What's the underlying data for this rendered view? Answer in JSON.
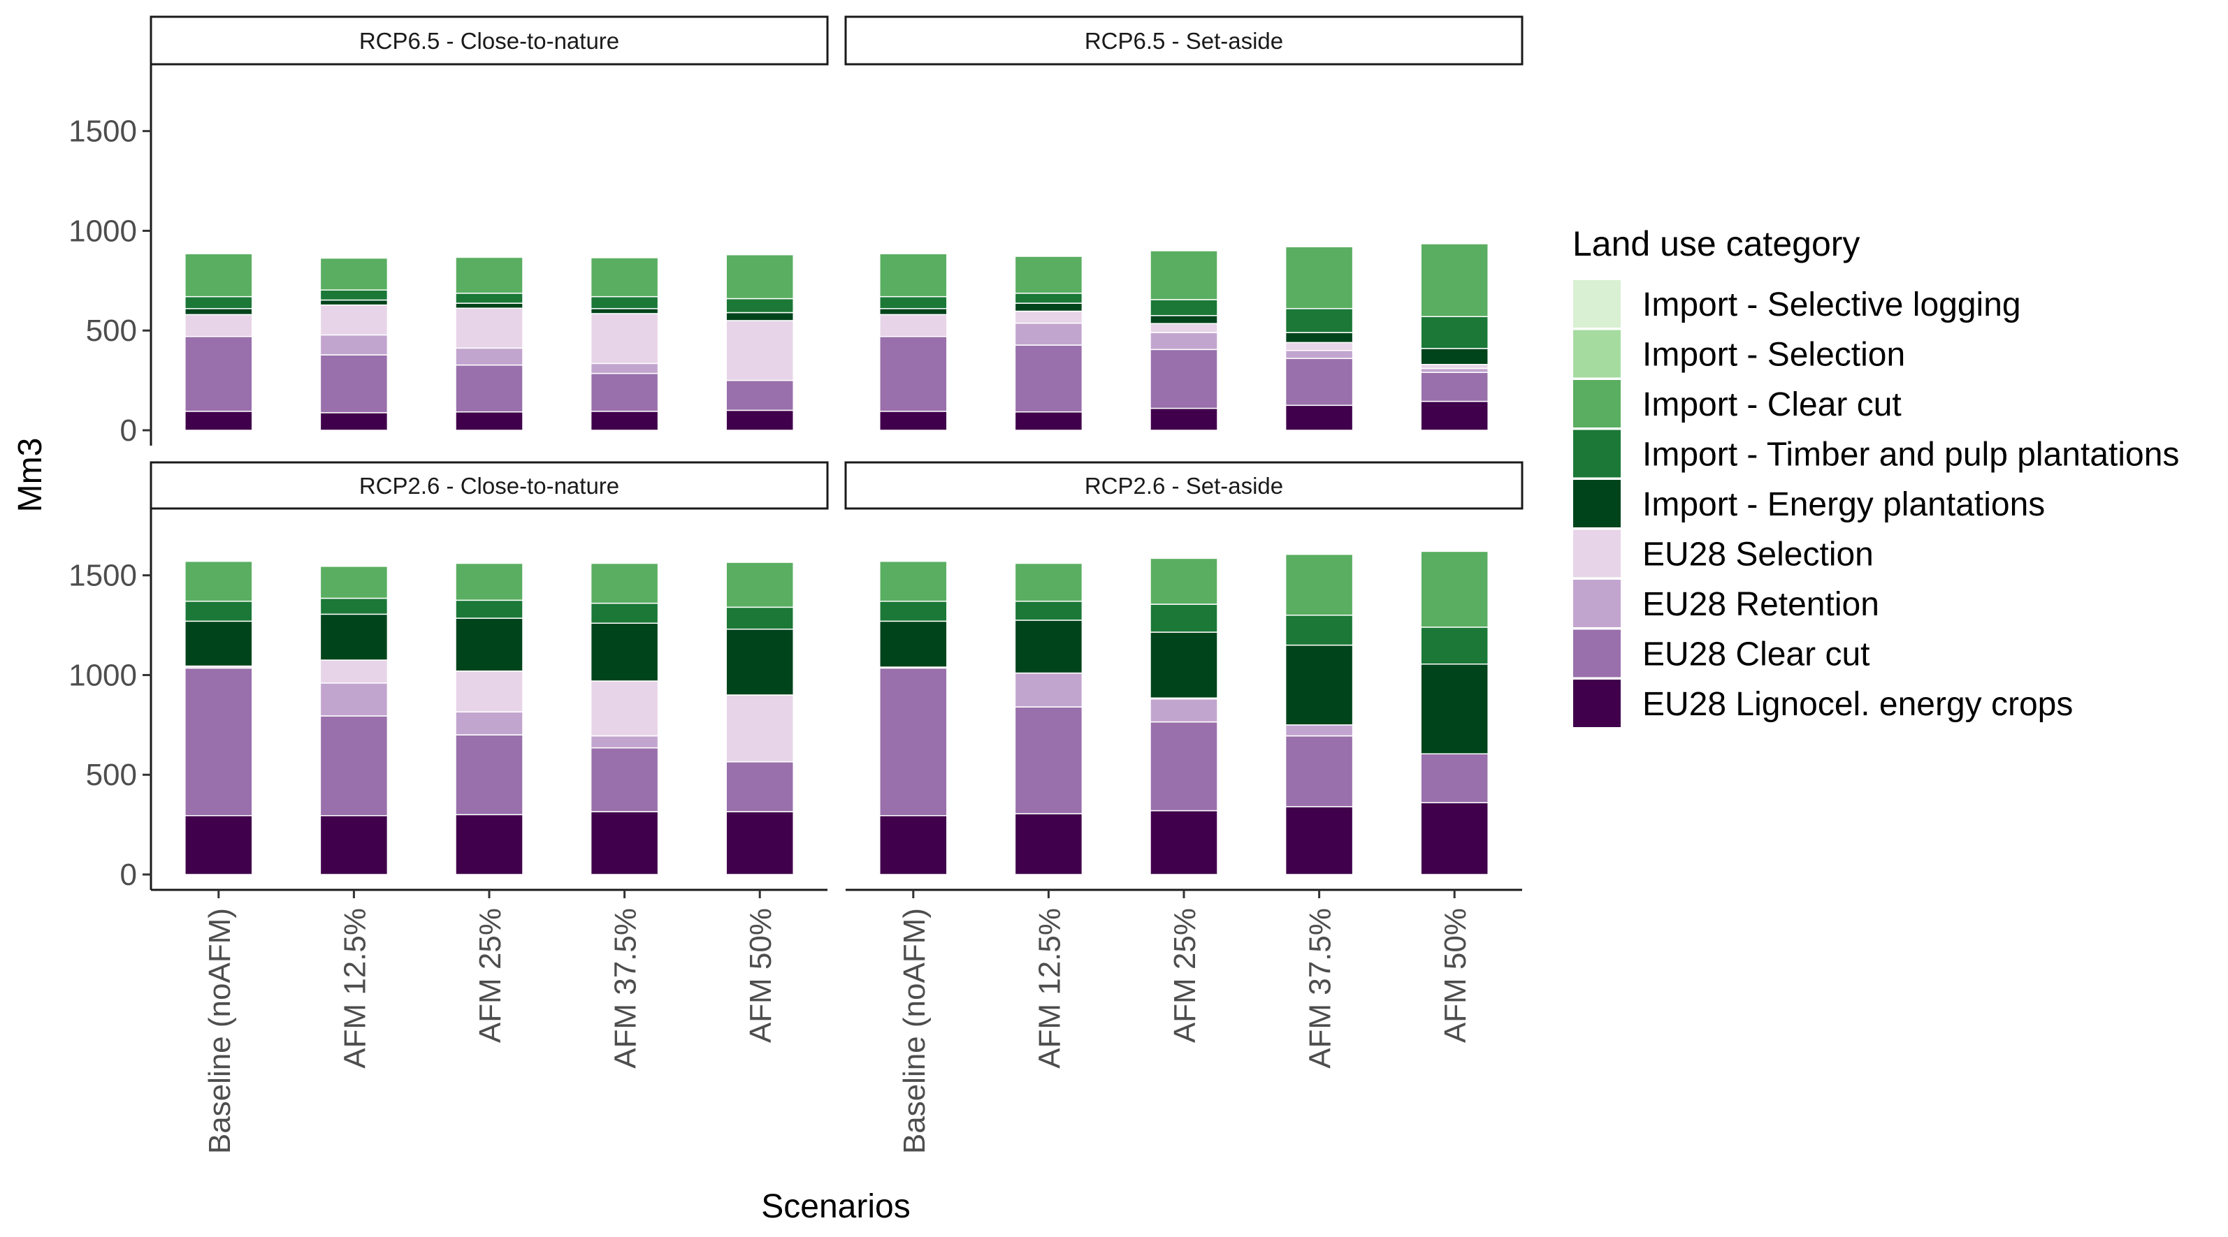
{
  "chart_data": {
    "type": "bar",
    "stacked": true,
    "xlabel": "Scenarios",
    "ylabel": "Mm3",
    "ylim": [
      0,
      1800
    ],
    "yticks": [
      "0",
      "500",
      "1000",
      "1500"
    ],
    "grid": false,
    "legend_position": "right",
    "categories": [
      "Baseline (noAFM)",
      "AFM 12.5%",
      "AFM 25%",
      "AFM 37.5%",
      "AFM 50%"
    ],
    "legend": {
      "title": "Land use category",
      "items": [
        {
          "name": "Import - Selective logging",
          "color": "#d9f0d3"
        },
        {
          "name": "Import - Selection",
          "color": "#a6dba0"
        },
        {
          "name": "Import - Clear cut",
          "color": "#5aae61"
        },
        {
          "name": "Import - Timber and pulp plantations",
          "color": "#1b7837"
        },
        {
          "name": "Import - Energy plantations",
          "color": "#00441b"
        },
        {
          "name": "EU28 Selection",
          "color": "#e7d4e8"
        },
        {
          "name": "EU28 Retention",
          "color": "#c2a5cf"
        },
        {
          "name": "EU28 Clear cut",
          "color": "#9970ab"
        },
        {
          "name": "EU28 Lignocel. energy crops",
          "color": "#40004b"
        }
      ]
    },
    "panels": [
      {
        "title": "RCP6.5 - Close-to-nature",
        "series": [
          {
            "name": "EU28 Lignocel. energy crops",
            "values": [
              95,
              88,
              92,
              95,
              100
            ]
          },
          {
            "name": "EU28 Clear cut",
            "values": [
              375,
              290,
              235,
              190,
              150
            ]
          },
          {
            "name": "EU28 Retention",
            "values": [
              0,
              100,
              85,
              50,
              0
            ]
          },
          {
            "name": "EU28 Selection",
            "values": [
              110,
              150,
              200,
              250,
              300
            ]
          },
          {
            "name": "Import - Energy plantations",
            "values": [
              30,
              25,
              25,
              25,
              40
            ]
          },
          {
            "name": "Import - Timber and pulp plantations",
            "values": [
              60,
              50,
              50,
              60,
              70
            ]
          },
          {
            "name": "Import - Clear cut",
            "values": [
              215,
              160,
              180,
              195,
              220
            ]
          },
          {
            "name": "Import - Selection",
            "values": [
              0,
              0,
              0,
              0,
              0
            ]
          },
          {
            "name": "Import - Selective logging",
            "values": [
              0,
              0,
              0,
              0,
              0
            ]
          }
        ]
      },
      {
        "title": "RCP6.5 - Set-aside",
        "series": [
          {
            "name": "EU28 Lignocel. energy crops",
            "values": [
              95,
              92,
              110,
              125,
              145
            ]
          },
          {
            "name": "EU28 Clear cut",
            "values": [
              375,
              335,
              295,
              235,
              145
            ]
          },
          {
            "name": "EU28 Retention",
            "values": [
              0,
              110,
              85,
              40,
              20
            ]
          },
          {
            "name": "EU28 Selection",
            "values": [
              110,
              60,
              45,
              40,
              20
            ]
          },
          {
            "name": "Import - Energy plantations",
            "values": [
              30,
              40,
              40,
              50,
              80
            ]
          },
          {
            "name": "Import - Timber and pulp plantations",
            "values": [
              60,
              50,
              80,
              120,
              160
            ]
          },
          {
            "name": "Import - Clear cut",
            "values": [
              215,
              185,
              245,
              310,
              365
            ]
          },
          {
            "name": "Import - Selection",
            "values": [
              0,
              0,
              0,
              0,
              0
            ]
          },
          {
            "name": "Import - Selective logging",
            "values": [
              0,
              0,
              0,
              0,
              0
            ]
          }
        ]
      },
      {
        "title": "RCP2.6 - Close-to-nature",
        "series": [
          {
            "name": "EU28 Lignocel. energy crops",
            "values": [
              295,
              295,
              300,
              315,
              315
            ]
          },
          {
            "name": "EU28 Clear cut",
            "values": [
              740,
              500,
              400,
              320,
              250
            ]
          },
          {
            "name": "EU28 Retention",
            "values": [
              0,
              165,
              115,
              60,
              0
            ]
          },
          {
            "name": "EU28 Selection",
            "values": [
              10,
              115,
              205,
              275,
              335
            ]
          },
          {
            "name": "Import - Energy plantations",
            "values": [
              225,
              230,
              265,
              290,
              330
            ]
          },
          {
            "name": "Import - Timber and pulp plantations",
            "values": [
              100,
              80,
              90,
              100,
              110
            ]
          },
          {
            "name": "Import - Clear cut",
            "values": [
              200,
              160,
              185,
              200,
              225
            ]
          },
          {
            "name": "Import - Selection",
            "values": [
              0,
              0,
              0,
              0,
              0
            ]
          },
          {
            "name": "Import - Selective logging",
            "values": [
              0,
              0,
              0,
              0,
              0
            ]
          }
        ]
      },
      {
        "title": "RCP2.6 - Set-aside",
        "series": [
          {
            "name": "EU28 Lignocel. energy crops",
            "values": [
              295,
              305,
              320,
              340,
              360
            ]
          },
          {
            "name": "EU28 Clear cut",
            "values": [
              740,
              535,
              445,
              355,
              245
            ]
          },
          {
            "name": "EU28 Retention",
            "values": [
              0,
              170,
              115,
              55,
              0
            ]
          },
          {
            "name": "EU28 Selection",
            "values": [
              5,
              0,
              5,
              0,
              0
            ]
          },
          {
            "name": "Import - Energy plantations",
            "values": [
              230,
              265,
              330,
              400,
              450
            ]
          },
          {
            "name": "Import - Timber and pulp plantations",
            "values": [
              100,
              95,
              140,
              150,
              185
            ]
          },
          {
            "name": "Import - Clear cut",
            "values": [
              200,
              190,
              230,
              305,
              380
            ]
          },
          {
            "name": "Import - Selection",
            "values": [
              0,
              0,
              0,
              0,
              0
            ]
          },
          {
            "name": "Import - Selective logging",
            "values": [
              0,
              0,
              0,
              0,
              0
            ]
          }
        ]
      }
    ]
  }
}
